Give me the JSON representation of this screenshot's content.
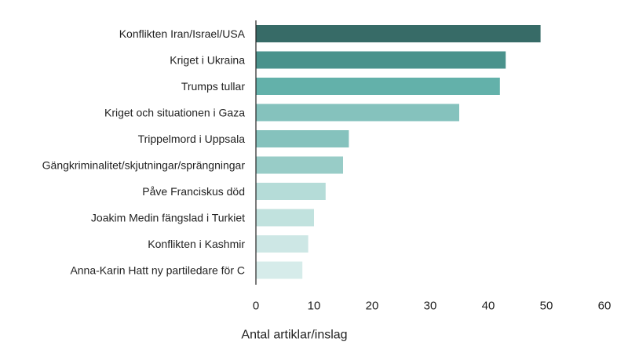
{
  "chart_data": {
    "type": "bar",
    "orientation": "horizontal",
    "title": "",
    "xlabel": "Antal artiklar/inslag",
    "ylabel": "",
    "xlim": [
      0,
      60
    ],
    "xticks": [
      "0",
      "10",
      "20",
      "30",
      "40",
      "50",
      "60"
    ],
    "grid": false,
    "categories": [
      "Konflikten Iran/Israel/USA",
      "Kriget i Ukraina",
      "Trumps tullar",
      "Kriget och situationen i Gaza",
      "Trippelmord i Uppsala",
      "Gängkriminalitet/skjutningar/sprängningar",
      "Påve Franciskus död",
      "Joakim Medin fängslad i Turkiet",
      "Konflikten i Kashmir",
      "Anna-Karin Hatt ny partiledare för C"
    ],
    "values": [
      49,
      43,
      42,
      35,
      16,
      15,
      12,
      10,
      9,
      8
    ],
    "colors": [
      "#376b67",
      "#4a928c",
      "#63b1aa",
      "#85c2bd",
      "#85c2bd",
      "#98ccc7",
      "#b5dcd8",
      "#c1e2de",
      "#cde7e5",
      "#d6ecea"
    ]
  }
}
